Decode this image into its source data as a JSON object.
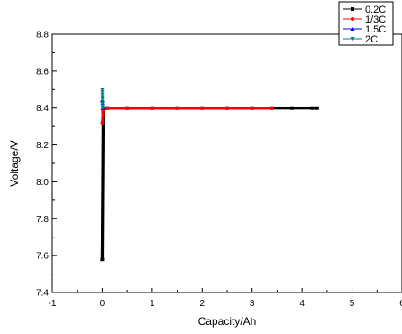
{
  "chart_data": {
    "type": "line",
    "xlabel": "Capacity/Ah",
    "ylabel": "Voltage/V",
    "xlim": [
      -1,
      6
    ],
    "ylim": [
      7.4,
      8.8
    ],
    "xticks": [
      -1,
      0,
      1,
      2,
      3,
      4,
      5,
      6
    ],
    "yticks": [
      7.4,
      7.6,
      7.8,
      8.0,
      8.2,
      8.4,
      8.6,
      8.8
    ],
    "xtick_labels": [
      "-1",
      "0",
      "1",
      "2",
      "3",
      "4",
      "5",
      "6"
    ],
    "ytick_labels": [
      "7.4",
      "7.6",
      "7.8",
      "8.0",
      "8.2",
      "8.4",
      "8.6",
      "8.8"
    ],
    "grid": false,
    "legend_position": "top-right",
    "series": [
      {
        "name": "0.2C",
        "color": "#000000",
        "marker": "square",
        "x": [
          0.0,
          0.02,
          0.04,
          0.1,
          0.5,
          1.0,
          1.5,
          2.0,
          2.5,
          3.0,
          3.4,
          3.8,
          4.2,
          4.3
        ],
        "y": [
          7.58,
          8.38,
          8.4,
          8.4,
          8.4,
          8.4,
          8.4,
          8.4,
          8.4,
          8.4,
          8.4,
          8.4,
          8.4,
          8.4
        ]
      },
      {
        "name": "1/3C",
        "color": "#ff0000",
        "marker": "circle",
        "x": [
          0.0,
          0.02,
          0.05,
          0.5,
          1.0,
          1.5,
          2.0,
          2.5,
          3.0,
          3.4
        ],
        "y": [
          8.32,
          8.39,
          8.4,
          8.4,
          8.4,
          8.4,
          8.4,
          8.4,
          8.4,
          8.4
        ]
      },
      {
        "name": "1.5C",
        "color": "#0000ff",
        "marker": "triangle-up",
        "x": [
          0.0,
          0.01
        ],
        "y": [
          8.44,
          8.4
        ]
      },
      {
        "name": "2C",
        "color": "#008080",
        "marker": "triangle-down",
        "x": [
          0.0,
          0.01
        ],
        "y": [
          8.5,
          8.4
        ]
      }
    ]
  }
}
